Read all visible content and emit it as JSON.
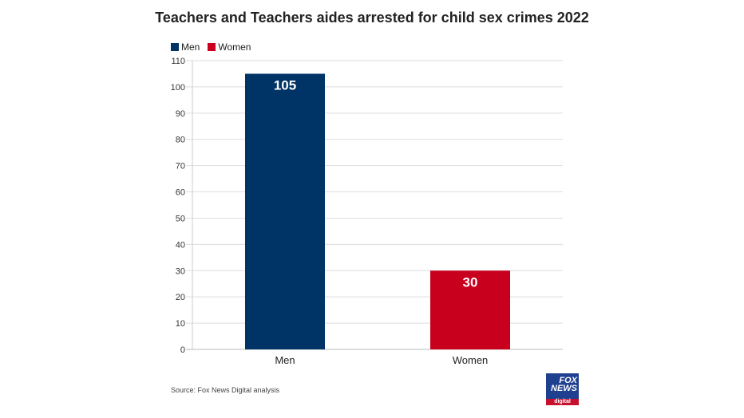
{
  "chart_data": {
    "type": "bar",
    "title": "Teachers and Teachers aides arrested for child sex crimes 2022",
    "categories": [
      "Men",
      "Women"
    ],
    "values": [
      105,
      30
    ],
    "colors": [
      "#003366",
      "#c8001e"
    ],
    "legend": [
      {
        "label": "Men",
        "color": "#003366"
      },
      {
        "label": "Women",
        "color": "#c8001e"
      }
    ],
    "legend_position": "top-left",
    "ylim": [
      0,
      110
    ],
    "yticks": [
      0,
      10,
      20,
      30,
      40,
      50,
      60,
      70,
      80,
      90,
      100,
      110
    ],
    "grid": true,
    "xlabel": "",
    "ylabel": ""
  },
  "source": "Source: Fox News Digital analysis",
  "logo": {
    "text": "FOX NEWS",
    "sub": "digital"
  }
}
